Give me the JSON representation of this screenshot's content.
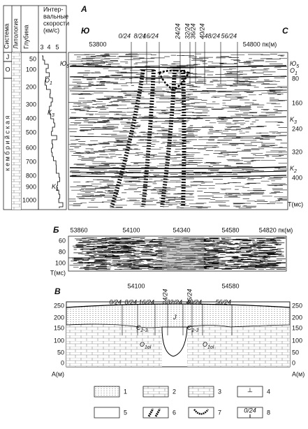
{
  "left_column": {
    "headers": [
      "Система",
      "Литология",
      "Глубина"
    ],
    "velocity_header": [
      "Интер-",
      "вальные",
      "скорости",
      "(км/с)"
    ],
    "velocity_ticks": [
      "3",
      "4",
      "5"
    ],
    "depths": [
      "50",
      "100",
      "200",
      "300",
      "400",
      "500",
      "600",
      "700",
      "800",
      "900",
      "1000"
    ],
    "systems": [
      "J",
      "O",
      "к е м б р и й с к а я"
    ],
    "horizons": [
      {
        "base": "Ю",
        "index": "5"
      },
      {
        "base": "O",
        "index": "1"
      },
      {
        "base": "K",
        "index": "3"
      },
      {
        "base": "K",
        "index": "1"
      }
    ]
  },
  "panel_a": {
    "letter": "А",
    "south": "Ю",
    "north": "С",
    "pickets": [
      "53800",
      "54800 пк(м)"
    ],
    "markers": [
      "0/24",
      "8/24",
      "16/24",
      "24/24",
      "32/24",
      "36/24",
      "40/24",
      "48/24",
      "56/24"
    ],
    "right_labels": [
      {
        "base": "Ю",
        "index": "5"
      },
      {
        "base": "O",
        "index": "1"
      },
      "80",
      "160",
      {
        "base": "K",
        "index": "3"
      },
      "240",
      "320",
      {
        "base": "K",
        "index": "2"
      },
      "400"
    ],
    "time_label": "T(мс)"
  },
  "panel_b": {
    "letter": "Б",
    "pickets": [
      "53860",
      "54100",
      "54340",
      "54580",
      "54820 пк(м)"
    ],
    "times": [
      "60",
      "80",
      "100"
    ],
    "time_label": "T(мс)"
  },
  "panel_c": {
    "letter": "В",
    "pickets": [
      "54100",
      "54580"
    ],
    "markers": [
      "0/24",
      "8/24",
      "16/24",
      "24/24",
      "32/24",
      "36/24",
      "40/24",
      "56/24"
    ],
    "elevations": [
      "250",
      "200",
      "150",
      "100",
      "50",
      "0"
    ],
    "elevation_label": "А(м)",
    "units": [
      {
        "base": "Є",
        "index": "2-3"
      },
      {
        "base": "J",
        "index": ""
      },
      {
        "base": "O",
        "index": "1ol"
      },
      {
        "base": "O",
        "index": "1ol"
      },
      {
        "base": "Є",
        "index": "2-3"
      }
    ]
  },
  "legend": {
    "numbers": [
      "1",
      "2",
      "3",
      "4",
      "5",
      "6",
      "7",
      "8"
    ],
    "sample_label": "0/24"
  }
}
